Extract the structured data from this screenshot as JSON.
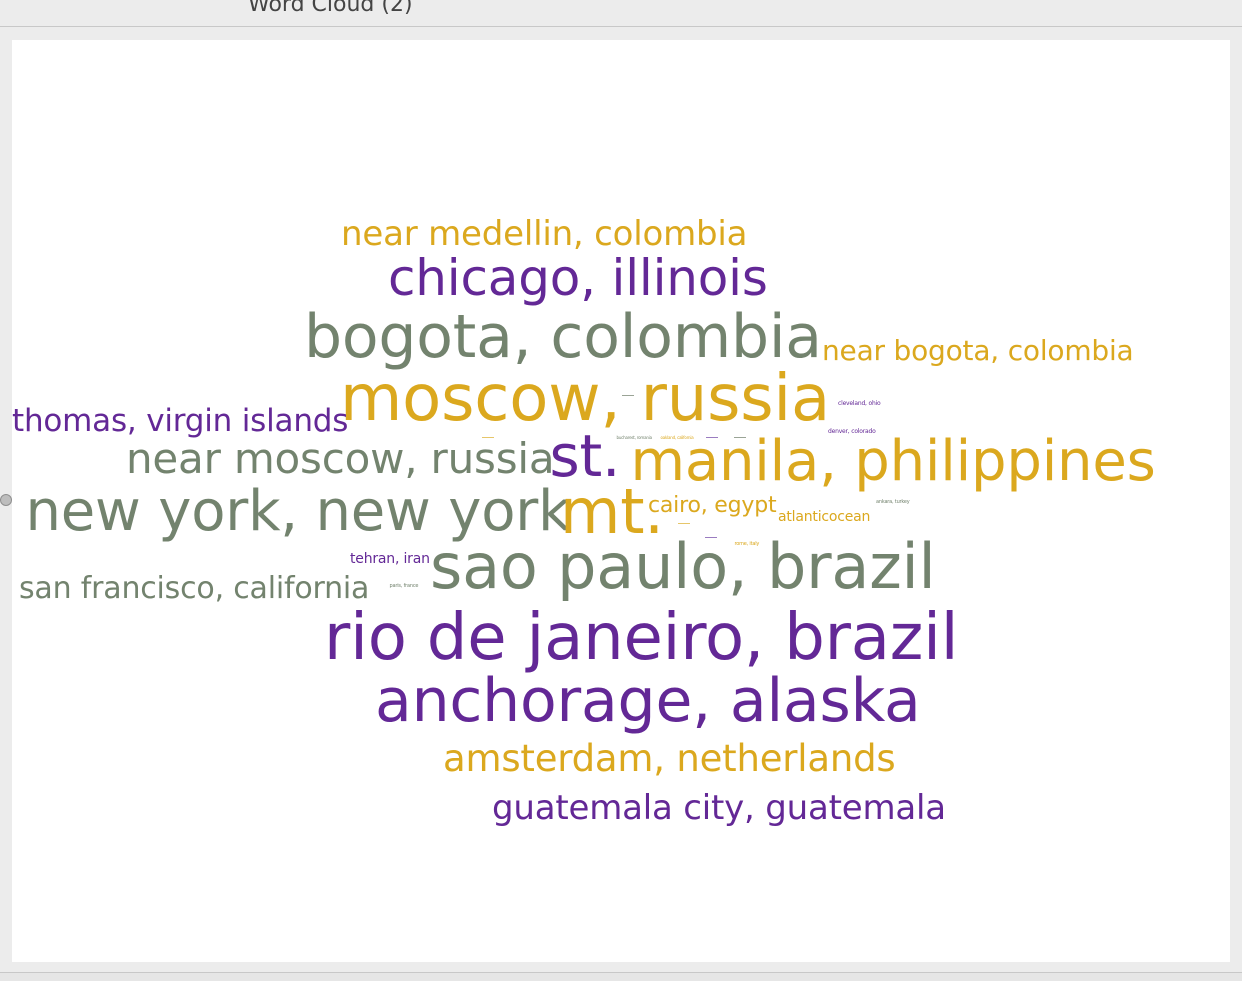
{
  "window": {
    "title": "Word Cloud (2)"
  },
  "palette": {
    "gold": "#dba81e",
    "purple": "#632896",
    "gray": "#73836e"
  },
  "chart_data": {
    "type": "wordcloud",
    "title": "",
    "words": [
      {
        "text": "near medellin, colombia",
        "color": "gold"
      },
      {
        "text": "chicago, illinois",
        "color": "purple"
      },
      {
        "text": "bogota, colombia",
        "color": "gray"
      },
      {
        "text": "near bogota, colombia",
        "color": "gold"
      },
      {
        "text": "moscow, russia",
        "color": "gold"
      },
      {
        "text": "thomas, virgin islands",
        "color": "purple"
      },
      {
        "text": "near moscow, russia",
        "color": "gray"
      },
      {
        "text": "st.",
        "color": "purple"
      },
      {
        "text": "manila, philippines",
        "color": "gold"
      },
      {
        "text": "new york, new york",
        "color": "gray"
      },
      {
        "text": "mt.",
        "color": "gold"
      },
      {
        "text": "cairo, egypt",
        "color": "gold"
      },
      {
        "text": "atlanticocean",
        "color": "gold"
      },
      {
        "text": "tehran, iran",
        "color": "purple"
      },
      {
        "text": "sao paulo, brazil",
        "color": "gray"
      },
      {
        "text": "san francisco, california",
        "color": "gray"
      },
      {
        "text": "rio de janeiro, brazil",
        "color": "purple"
      },
      {
        "text": "anchorage, alaska",
        "color": "purple"
      },
      {
        "text": "amsterdam, netherlands",
        "color": "gold"
      },
      {
        "text": "guatemala city, guatemala",
        "color": "purple"
      },
      {
        "text": "cleveland, ohio",
        "color": "purple"
      },
      {
        "text": "denver, colorado",
        "color": "purple"
      },
      {
        "text": "ankara, turkey",
        "color": "gray"
      },
      {
        "text": "rome, italy",
        "color": "gold"
      },
      {
        "text": "paris, france",
        "color": "gray"
      },
      {
        "text": "bucharest, romania",
        "color": "gray"
      },
      {
        "text": "oakland, california",
        "color": "gold"
      }
    ]
  }
}
